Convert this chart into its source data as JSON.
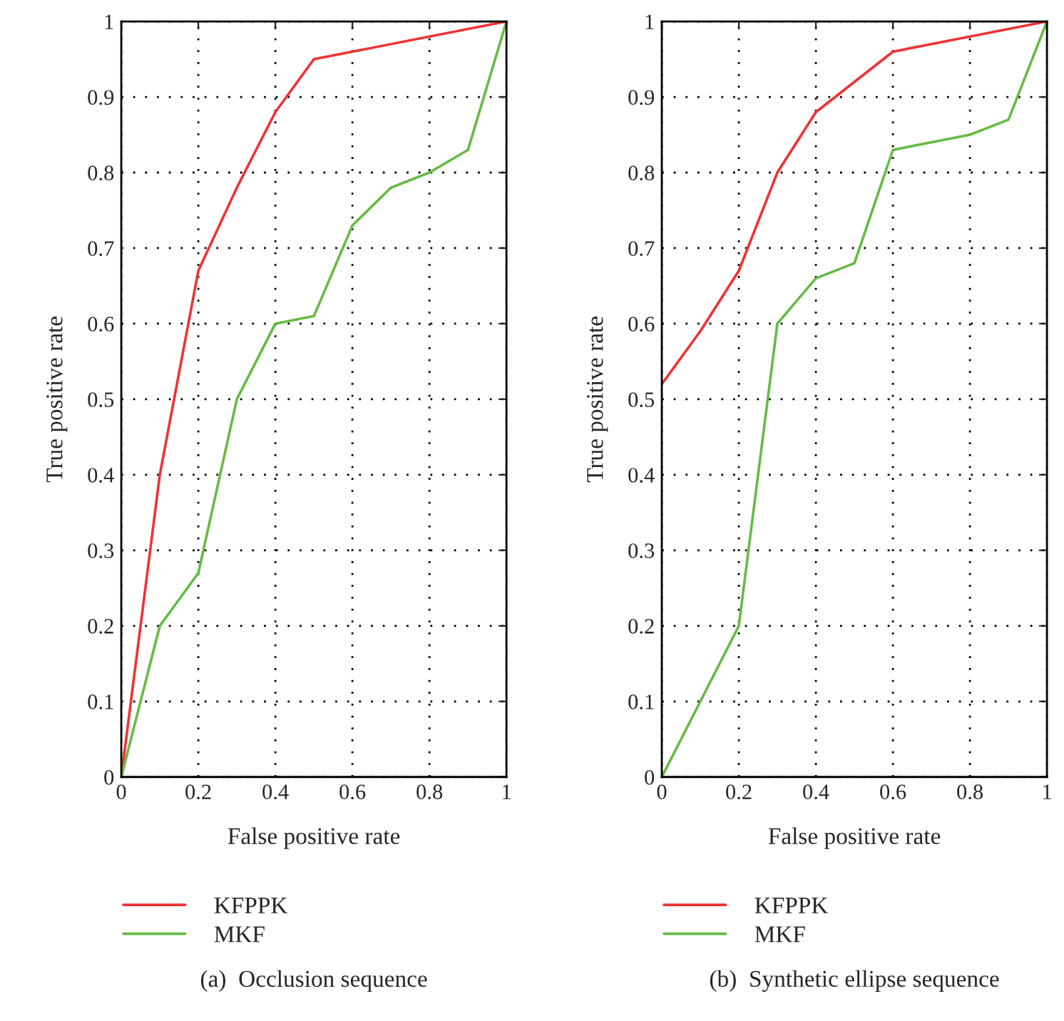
{
  "chart_data": [
    {
      "type": "line",
      "xlabel": "False positive rate",
      "ylabel": "True positive rate",
      "xlim": [
        0,
        1
      ],
      "ylim": [
        0,
        1
      ],
      "xticks": [
        0,
        0.2,
        0.4,
        0.6,
        0.8,
        1
      ],
      "yticks": [
        0,
        0.1,
        0.2,
        0.3,
        0.4,
        0.5,
        0.6,
        0.7,
        0.8,
        0.9,
        1
      ],
      "grid": true,
      "legend": "bottom",
      "line_style": "solid",
      "marker": "none",
      "annotations": [
        "(a)  Occlusion sequence"
      ],
      "series": [
        {
          "name": "KFPPK",
          "color": "#ee3333",
          "x": [
            0,
            0.1,
            0.2,
            0.3,
            0.4,
            0.5,
            1
          ],
          "values": [
            0,
            0.4,
            0.67,
            0.78,
            0.88,
            0.95,
            1
          ]
        },
        {
          "name": "MKF",
          "color": "#66bb44",
          "x": [
            0,
            0.1,
            0.2,
            0.3,
            0.4,
            0.5,
            0.6,
            0.7,
            0.8,
            0.9,
            1
          ],
          "values": [
            0,
            0.2,
            0.27,
            0.5,
            0.6,
            0.61,
            0.73,
            0.78,
            0.8,
            0.83,
            1
          ]
        }
      ]
    },
    {
      "type": "line",
      "xlabel": "False positive rate",
      "ylabel": "True positive rate",
      "xlim": [
        0,
        1
      ],
      "ylim": [
        0,
        1
      ],
      "xticks": [
        0,
        0.2,
        0.4,
        0.6,
        0.8,
        1
      ],
      "yticks": [
        0,
        0.1,
        0.2,
        0.3,
        0.4,
        0.5,
        0.6,
        0.7,
        0.8,
        0.9,
        1
      ],
      "grid": true,
      "legend": "bottom",
      "line_style": "solid",
      "marker": "none",
      "annotations": [
        "(b)  Synthetic ellipse sequence"
      ],
      "series": [
        {
          "name": "KFPPK",
          "color": "#ee3333",
          "x": [
            0,
            0.1,
            0.2,
            0.3,
            0.4,
            0.6,
            0.8,
            1
          ],
          "values": [
            0.52,
            0.59,
            0.67,
            0.8,
            0.88,
            0.96,
            0.98,
            1
          ]
        },
        {
          "name": "MKF",
          "color": "#66bb44",
          "x": [
            0,
            0.2,
            0.3,
            0.4,
            0.5,
            0.6,
            0.8,
            0.9,
            1
          ],
          "values": [
            0,
            0.2,
            0.6,
            0.66,
            0.68,
            0.83,
            0.85,
            0.87,
            1
          ]
        }
      ]
    }
  ]
}
